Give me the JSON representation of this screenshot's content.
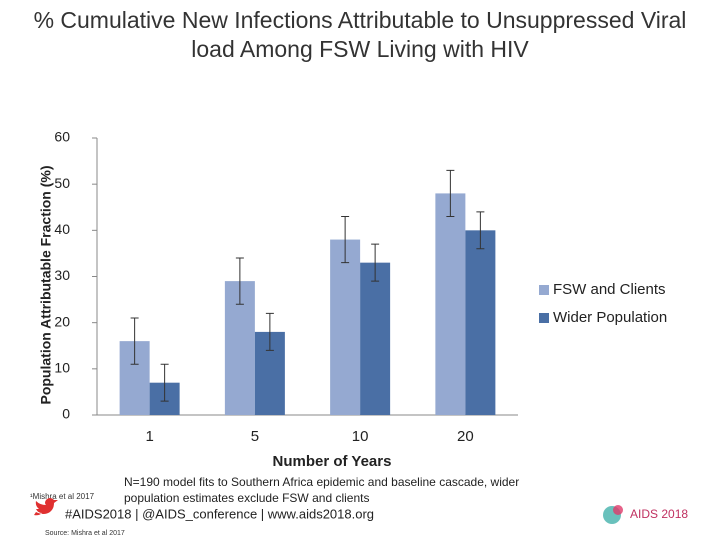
{
  "chart_data": {
    "type": "bar",
    "title": "% Cumulative New Infections Attributable to Unsuppressed Viral load Among FSW Living with HIV",
    "y_label": "Population Attributable Fraction (%)",
    "x_label": "Number of Years",
    "categories": [
      "1",
      "5",
      "10",
      "20"
    ],
    "series": [
      {
        "name": "FSW and Clients",
        "color": "#95a9d1",
        "values": [
          16,
          29,
          38,
          48
        ],
        "errors": [
          5,
          5,
          5,
          5
        ]
      },
      {
        "name": "Wider Population",
        "color": "#4a6fa5",
        "values": [
          7,
          18,
          33,
          40
        ],
        "errors": [
          4,
          4,
          4,
          4
        ]
      }
    ],
    "ylim": [
      0,
      60
    ],
    "yticks": [
      0,
      10,
      20,
      30,
      40,
      50,
      60
    ],
    "grid": false,
    "legend": "right"
  },
  "footer": {
    "note": "N=190 model fits to Southern Africa epidemic and baseline cascade, wider population estimates exclude FSW and clients",
    "reference": "¹Mishra et al 2017",
    "hashtags": "#AIDS2018 | @AIDS_conference | www.aids2018.org",
    "source": "Source: Mishra et al 2017",
    "logo_text": "AIDS 2018"
  }
}
